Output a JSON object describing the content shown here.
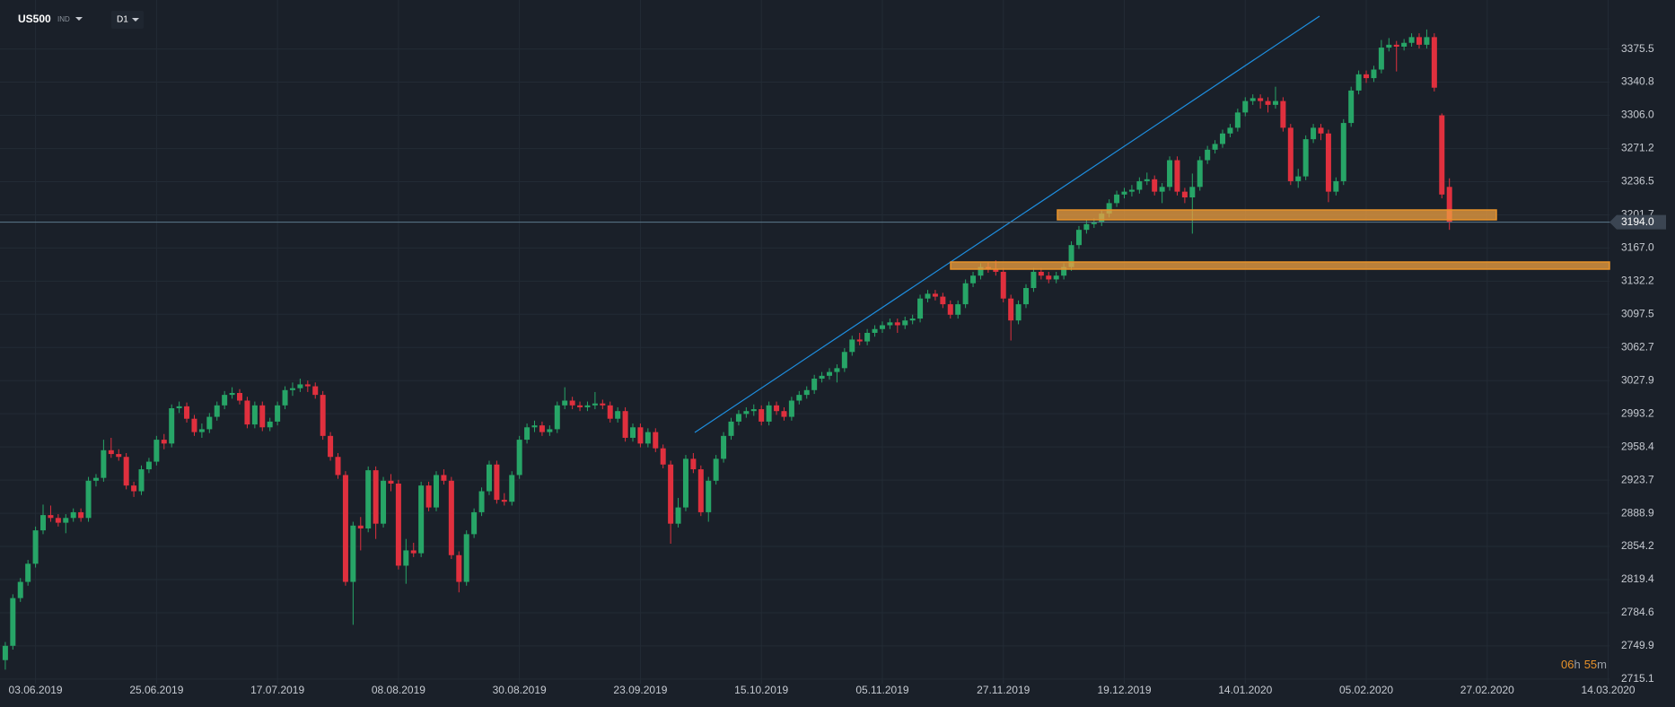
{
  "header": {
    "symbol": "US500",
    "market": "IND",
    "interval": "D1"
  },
  "countdown": {
    "hours": "06",
    "hours_unit": "h",
    "minutes": "55",
    "minutes_unit": "m"
  },
  "chart_data": {
    "type": "candlestick",
    "up_color": "#27a567",
    "down_color": "#e0303e",
    "grid": true,
    "xlim": [
      -0.7,
      213
    ],
    "ylim": [
      2710.3,
      3426.9
    ],
    "xticks": [
      {
        "value": 4,
        "label": "03.06.2019"
      },
      {
        "value": 20,
        "label": "25.06.2019"
      },
      {
        "value": 36,
        "label": "17.07.2019"
      },
      {
        "value": 52,
        "label": "08.08.2019"
      },
      {
        "value": 68,
        "label": "30.08.2019"
      },
      {
        "value": 84,
        "label": "23.09.2019"
      },
      {
        "value": 100,
        "label": "15.10.2019"
      },
      {
        "value": 116,
        "label": "05.11.2019"
      },
      {
        "value": 132,
        "label": "27.11.2019"
      },
      {
        "value": 148,
        "label": "19.12.2019"
      },
      {
        "value": 164,
        "label": "14.01.2020"
      },
      {
        "value": 180,
        "label": "05.02.2020"
      },
      {
        "value": 196,
        "label": "27.02.2020"
      },
      {
        "value": 212,
        "label": "14.03.2020"
      }
    ],
    "yticks": [
      3375.5,
      3340.8,
      {
        "value": 3306,
        "label": "3306.0"
      },
      3271.2,
      3236.5,
      3201.7,
      {
        "value": 3167,
        "label": "3167.0"
      },
      3132.2,
      3097.5,
      3062.7,
      3027.9,
      2993.2,
      2958.4,
      2923.7,
      2888.9,
      2854.2,
      2819.4,
      2784.6,
      2749.9,
      2715.1
    ],
    "last_price": {
      "value": 3194,
      "label": "3194.0"
    },
    "ohlc": [
      [
        2735,
        2754,
        2725,
        2750
      ],
      [
        2750,
        2804,
        2746,
        2800
      ],
      [
        2800,
        2821,
        2796,
        2817
      ],
      [
        2817,
        2840,
        2813,
        2836
      ],
      [
        2836,
        2875,
        2832,
        2871
      ],
      [
        2871,
        2898,
        2867,
        2887
      ],
      [
        2887,
        2897,
        2880,
        2884
      ],
      [
        2884,
        2888,
        2875,
        2879
      ],
      [
        2879,
        2888,
        2868,
        2884
      ],
      [
        2884,
        2894,
        2880,
        2890
      ],
      [
        2890,
        2894,
        2880,
        2884
      ],
      [
        2884,
        2927,
        2880,
        2923
      ],
      [
        2923,
        2930,
        2917,
        2926
      ],
      [
        2926,
        2966,
        2922,
        2955
      ],
      [
        2955,
        2968,
        2947,
        2951
      ],
      [
        2951,
        2956,
        2944,
        2948
      ],
      [
        2948,
        2952,
        2914,
        2918
      ],
      [
        2918,
        2922,
        2906,
        2912
      ],
      [
        2912,
        2939,
        2908,
        2935
      ],
      [
        2935,
        2947,
        2931,
        2943
      ],
      [
        2943,
        2970,
        2939,
        2966
      ],
      [
        2966,
        2972,
        2956,
        2962
      ],
      [
        2962,
        3003,
        2958,
        2999
      ],
      [
        2999,
        3006,
        2994,
        3001
      ],
      [
        3001,
        3005,
        2984,
        2988
      ],
      [
        2988,
        2992,
        2970,
        2974
      ],
      [
        2974,
        2983,
        2968,
        2977
      ],
      [
        2977,
        2994,
        2973,
        2990
      ],
      [
        2990,
        3006,
        2986,
        3002
      ],
      [
        3002,
        3017,
        2998,
        3013
      ],
      [
        3013,
        3021,
        3009,
        3015
      ],
      [
        3015,
        3019,
        3003,
        3007
      ],
      [
        3007,
        3011,
        2978,
        2982
      ],
      [
        2982,
        3006,
        2978,
        3002
      ],
      [
        3002,
        3006,
        2975,
        2979
      ],
      [
        2979,
        2989,
        2975,
        2985
      ],
      [
        2985,
        3006,
        2981,
        3002
      ],
      [
        3002,
        3022,
        2998,
        3018
      ],
      [
        3018,
        3026,
        3012,
        3020
      ],
      [
        3020,
        3030,
        3016,
        3024
      ],
      [
        3024,
        3028,
        3016,
        3022
      ],
      [
        3022,
        3026,
        3009,
        3013
      ],
      [
        3013,
        3017,
        2966,
        2970
      ],
      [
        2970,
        2974,
        2944,
        2948
      ],
      [
        2948,
        2952,
        2925,
        2929
      ],
      [
        2929,
        2933,
        2813,
        2817
      ],
      [
        2817,
        2880,
        2772,
        2876
      ],
      [
        2876,
        2885,
        2850,
        2873
      ],
      [
        2873,
        2938,
        2869,
        2934
      ],
      [
        2934,
        2938,
        2862,
        2878
      ],
      [
        2878,
        2927,
        2874,
        2923
      ],
      [
        2923,
        2930,
        2912,
        2920
      ],
      [
        2920,
        2924,
        2830,
        2834
      ],
      [
        2834,
        2862,
        2815,
        2850
      ],
      [
        2850,
        2858,
        2843,
        2847
      ],
      [
        2847,
        2922,
        2843,
        2918
      ],
      [
        2918,
        2922,
        2891,
        2895
      ],
      [
        2895,
        2933,
        2891,
        2929
      ],
      [
        2929,
        2935,
        2919,
        2923
      ],
      [
        2923,
        2927,
        2841,
        2845
      ],
      [
        2845,
        2849,
        2806,
        2817
      ],
      [
        2817,
        2871,
        2813,
        2867
      ],
      [
        2867,
        2894,
        2863,
        2890
      ],
      [
        2890,
        2916,
        2886,
        2912
      ],
      [
        2912,
        2944,
        2908,
        2940
      ],
      [
        2940,
        2944,
        2899,
        2903
      ],
      [
        2903,
        2910,
        2897,
        2901
      ],
      [
        2901,
        2933,
        2897,
        2929
      ],
      [
        2929,
        2970,
        2925,
        2966
      ],
      [
        2966,
        2983,
        2962,
        2979
      ],
      [
        2979,
        2986,
        2974,
        2981
      ],
      [
        2981,
        2985,
        2970,
        2974
      ],
      [
        2974,
        2981,
        2970,
        2977
      ],
      [
        2977,
        3006,
        2973,
        3002
      ],
      [
        3002,
        3021,
        2998,
        3007
      ],
      [
        3007,
        3011,
        2998,
        3002
      ],
      [
        3002,
        3006,
        2996,
        3000
      ],
      [
        3000,
        3006,
        2996,
        3002
      ],
      [
        3002,
        3016,
        2998,
        3004
      ],
      [
        3004,
        3008,
        2998,
        3002
      ],
      [
        3002,
        3006,
        2984,
        2988
      ],
      [
        2988,
        3000,
        2984,
        2996
      ],
      [
        2996,
        3000,
        2964,
        2968
      ],
      [
        2968,
        2983,
        2964,
        2979
      ],
      [
        2979,
        2983,
        2958,
        2962
      ],
      [
        2962,
        2978,
        2958,
        2974
      ],
      [
        2974,
        2978,
        2953,
        2957
      ],
      [
        2957,
        2961,
        2936,
        2940
      ],
      [
        2940,
        2944,
        2857,
        2878
      ],
      [
        2878,
        2905,
        2874,
        2895
      ],
      [
        2895,
        2950,
        2891,
        2946
      ],
      [
        2946,
        2952,
        2931,
        2935
      ],
      [
        2935,
        2939,
        2886,
        2890
      ],
      [
        2890,
        2927,
        2880,
        2923
      ],
      [
        2923,
        2950,
        2919,
        2946
      ],
      [
        2946,
        2974,
        2942,
        2970
      ],
      [
        2970,
        2989,
        2966,
        2985
      ],
      [
        2985,
        2997,
        2981,
        2993
      ],
      [
        2993,
        3000,
        2989,
        2996
      ],
      [
        2996,
        3003,
        2991,
        2998
      ],
      [
        2998,
        3002,
        2981,
        2985
      ],
      [
        2985,
        3006,
        2981,
        3002
      ],
      [
        3002,
        3006,
        2992,
        2996
      ],
      [
        2996,
        3000,
        2986,
        2990
      ],
      [
        2990,
        3011,
        2986,
        3007
      ],
      [
        3007,
        3017,
        3003,
        3013
      ],
      [
        3013,
        3022,
        3009,
        3018
      ],
      [
        3018,
        3034,
        3014,
        3030
      ],
      [
        3030,
        3037,
        3026,
        3033
      ],
      [
        3033,
        3041,
        3029,
        3037
      ],
      [
        3037,
        3045,
        3026,
        3041
      ],
      [
        3041,
        3062,
        3037,
        3058
      ],
      [
        3058,
        3075,
        3054,
        3071
      ],
      [
        3071,
        3078,
        3065,
        3069
      ],
      [
        3069,
        3082,
        3065,
        3078
      ],
      [
        3078,
        3086,
        3074,
        3082
      ],
      [
        3082,
        3090,
        3078,
        3086
      ],
      [
        3086,
        3093,
        3082,
        3089
      ],
      [
        3089,
        3093,
        3078,
        3086
      ],
      [
        3086,
        3095,
        3082,
        3091
      ],
      [
        3091,
        3097,
        3087,
        3093
      ],
      [
        3093,
        3118,
        3089,
        3114
      ],
      [
        3114,
        3123,
        3110,
        3119
      ],
      [
        3119,
        3123,
        3112,
        3116
      ],
      [
        3116,
        3120,
        3104,
        3108
      ],
      [
        3108,
        3112,
        3093,
        3097
      ],
      [
        3097,
        3112,
        3093,
        3108
      ],
      [
        3108,
        3134,
        3104,
        3130
      ],
      [
        3130,
        3142,
        3126,
        3138
      ],
      [
        3138,
        3151,
        3134,
        3147
      ],
      [
        3147,
        3152,
        3141,
        3145
      ],
      [
        3145,
        3154,
        3138,
        3142
      ],
      [
        3142,
        3146,
        3110,
        3114
      ],
      [
        3114,
        3118,
        3070,
        3091
      ],
      [
        3091,
        3112,
        3087,
        3108
      ],
      [
        3108,
        3129,
        3104,
        3125
      ],
      [
        3125,
        3146,
        3121,
        3142
      ],
      [
        3142,
        3146,
        3134,
        3138
      ],
      [
        3138,
        3142,
        3130,
        3134
      ],
      [
        3134,
        3142,
        3130,
        3138
      ],
      [
        3138,
        3151,
        3134,
        3147
      ],
      [
        3147,
        3174,
        3143,
        3170
      ],
      [
        3170,
        3190,
        3166,
        3186
      ],
      [
        3186,
        3196,
        3182,
        3192
      ],
      [
        3192,
        3198,
        3188,
        3194
      ],
      [
        3194,
        3207,
        3190,
        3203
      ],
      [
        3203,
        3218,
        3199,
        3214
      ],
      [
        3214,
        3227,
        3210,
        3223
      ],
      [
        3223,
        3230,
        3219,
        3226
      ],
      [
        3226,
        3233,
        3221,
        3228
      ],
      [
        3228,
        3241,
        3224,
        3237
      ],
      [
        3237,
        3246,
        3233,
        3239
      ],
      [
        3239,
        3243,
        3222,
        3226
      ],
      [
        3226,
        3235,
        3214,
        3231
      ],
      [
        3231,
        3263,
        3227,
        3259
      ],
      [
        3259,
        3263,
        3222,
        3226
      ],
      [
        3226,
        3230,
        3214,
        3220
      ],
      [
        3220,
        3245,
        3182,
        3231
      ],
      [
        3231,
        3263,
        3227,
        3259
      ],
      [
        3259,
        3274,
        3255,
        3270
      ],
      [
        3270,
        3280,
        3266,
        3276
      ],
      [
        3276,
        3291,
        3272,
        3287
      ],
      [
        3287,
        3297,
        3283,
        3293
      ],
      [
        3293,
        3313,
        3289,
        3309
      ],
      [
        3309,
        3325,
        3305,
        3321
      ],
      [
        3321,
        3328,
        3317,
        3324
      ],
      [
        3324,
        3328,
        3313,
        3321
      ],
      [
        3321,
        3325,
        3309,
        3317
      ],
      [
        3317,
        3336,
        3313,
        3321
      ],
      [
        3321,
        3325,
        3289,
        3293
      ],
      [
        3293,
        3297,
        3233,
        3237
      ],
      [
        3237,
        3250,
        3230,
        3242
      ],
      [
        3242,
        3285,
        3238,
        3281
      ],
      [
        3281,
        3297,
        3277,
        3293
      ],
      [
        3293,
        3297,
        3280,
        3287
      ],
      [
        3287,
        3291,
        3215,
        3226
      ],
      [
        3226,
        3241,
        3222,
        3237
      ],
      [
        3237,
        3302,
        3233,
        3298
      ],
      [
        3298,
        3336,
        3294,
        3332
      ],
      [
        3332,
        3353,
        3328,
        3349
      ],
      [
        3349,
        3353,
        3340,
        3345
      ],
      [
        3345,
        3358,
        3341,
        3354
      ],
      [
        3354,
        3385,
        3350,
        3377
      ],
      [
        3377,
        3387,
        3373,
        3380
      ],
      [
        3380,
        3384,
        3352,
        3378
      ],
      [
        3378,
        3386,
        3374,
        3382
      ],
      [
        3382,
        3392,
        3378,
        3388
      ],
      [
        3388,
        3392,
        3376,
        3380
      ],
      [
        3380,
        3396,
        3376,
        3388
      ],
      [
        3388,
        3392,
        3331,
        3335
      ],
      [
        3306,
        3308,
        3219,
        3223
      ],
      [
        3231,
        3240,
        3186,
        3194
      ]
    ]
  }
}
